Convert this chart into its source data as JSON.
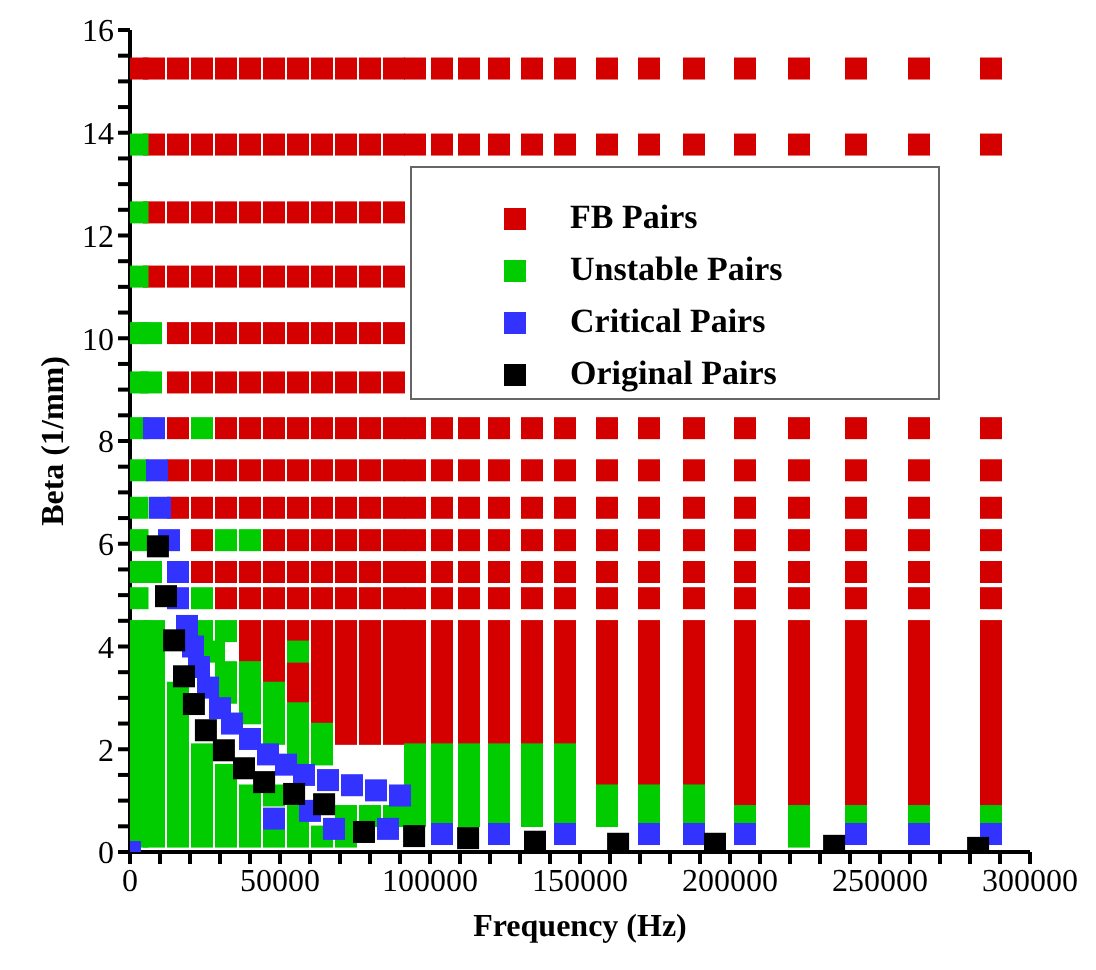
{
  "chart_data": {
    "type": "scatter",
    "xlabel": "Frequency (Hz)",
    "ylabel": "Beta (1/mm)",
    "xlim": [
      0,
      300000
    ],
    "ylim": [
      0,
      16
    ],
    "xticks": [
      0,
      {
        "value": 10000,
        "label": null
      },
      {
        "value": 20000,
        "label": null
      },
      {
        "value": 30000,
        "label": null
      },
      {
        "value": 40000,
        "label": null
      },
      50000,
      {
        "value": 60000,
        "label": null
      },
      {
        "value": 70000,
        "label": null
      },
      {
        "value": 80000,
        "label": null
      },
      {
        "value": 90000,
        "label": null
      },
      100000,
      {
        "value": 110000,
        "label": null
      },
      {
        "value": 120000,
        "label": null
      },
      {
        "value": 130000,
        "label": null
      },
      {
        "value": 140000,
        "label": null
      },
      150000,
      {
        "value": 160000,
        "label": null
      },
      {
        "value": 170000,
        "label": null
      },
      {
        "value": 180000,
        "label": null
      },
      {
        "value": 190000,
        "label": null
      },
      200000,
      {
        "value": 210000,
        "label": null
      },
      {
        "value": 220000,
        "label": null
      },
      {
        "value": 230000,
        "label": null
      },
      {
        "value": 240000,
        "label": null
      },
      250000,
      {
        "value": 260000,
        "label": null
      },
      {
        "value": 270000,
        "label": null
      },
      {
        "value": 280000,
        "label": null
      },
      {
        "value": 290000,
        "label": null
      },
      300000
    ],
    "yticks": [
      0,
      {
        "value": 0.5,
        "label": null
      },
      {
        "value": 1,
        "label": null
      },
      {
        "value": 1.5,
        "label": null
      },
      2,
      {
        "value": 2.5,
        "label": null
      },
      {
        "value": 3,
        "label": null
      },
      {
        "value": 3.5,
        "label": null
      },
      4,
      {
        "value": 4.5,
        "label": null
      },
      {
        "value": 5,
        "label": null
      },
      {
        "value": 5.5,
        "label": null
      },
      6,
      {
        "value": 6.5,
        "label": null
      },
      {
        "value": 7,
        "label": null
      },
      {
        "value": 7.5,
        "label": null
      },
      8,
      {
        "value": 8.5,
        "label": null
      },
      {
        "value": 9,
        "label": null
      },
      {
        "value": 9.5,
        "label": null
      },
      10,
      {
        "value": 10.5,
        "label": null
      },
      {
        "value": 11,
        "label": null
      },
      {
        "value": 11.5,
        "label": null
      },
      12,
      {
        "value": 12.5,
        "label": null
      },
      {
        "value": 13,
        "label": null
      },
      {
        "value": 13.5,
        "label": null
      },
      14,
      {
        "value": 14.5,
        "label": null
      },
      {
        "value": 15,
        "label": null
      },
      {
        "value": 15.5,
        "label": null
      },
      16
    ],
    "legend": "top right",
    "marker": "square",
    "series": [
      {
        "name": "FB Pairs",
        "color": "#d40000",
        "x": [
          2500,
          8000,
          16000,
          24000,
          32000,
          40000,
          48000,
          56000,
          64000,
          72000,
          80000,
          88000,
          95000,
          104000,
          113000,
          123000,
          134000,
          145000,
          159000,
          173000,
          188000,
          205000,
          223000,
          242000,
          263000,
          287000
        ],
        "values": [
          15.25,
          15.25,
          15.25,
          15.25,
          15.25,
          15.25,
          15.25,
          15.25,
          15.25,
          15.25,
          15.25,
          15.25,
          15.25,
          15.25,
          15.25,
          15.25,
          15.25,
          15.25,
          15.25,
          15.25,
          15.25,
          15.25,
          15.25,
          15.25,
          15.25,
          15.25
        ]
      },
      {
        "color": "#d40000",
        "x": [
          8000,
          16000,
          24000,
          32000,
          40000,
          48000,
          56000,
          64000,
          72000,
          80000,
          88000,
          95000,
          104000,
          113000,
          123000,
          134000,
          145000,
          159000,
          173000,
          188000,
          205000,
          223000,
          242000,
          263000,
          287000
        ],
        "values": [
          13.77,
          13.77,
          13.77,
          13.77,
          13.77,
          13.77,
          13.77,
          13.77,
          13.77,
          13.77,
          13.77,
          13.77,
          13.77,
          13.77,
          13.77,
          13.77,
          13.77,
          13.77,
          13.77,
          13.77,
          13.77,
          13.77,
          13.77,
          13.77,
          13.77
        ]
      },
      {
        "color": "#d40000",
        "x": [
          8000,
          16000,
          24000,
          32000,
          40000,
          48000,
          56000,
          64000,
          72000,
          80000,
          88000
        ],
        "values": [
          12.45,
          12.45,
          12.45,
          12.45,
          12.45,
          12.45,
          12.45,
          12.45,
          12.45,
          12.45,
          12.45
        ]
      },
      {
        "color": "#d40000",
        "x": [
          8000,
          16000,
          24000,
          32000,
          40000,
          48000,
          56000,
          64000,
          72000,
          80000,
          88000
        ],
        "values": [
          11.2,
          11.2,
          11.2,
          11.2,
          11.2,
          11.2,
          11.2,
          11.2,
          11.2,
          11.2,
          11.2
        ]
      },
      {
        "color": "#d40000",
        "x": [
          16000,
          24000,
          32000,
          40000,
          48000,
          56000,
          64000,
          72000,
          80000,
          88000
        ],
        "values": [
          10.1,
          10.1,
          10.1,
          10.1,
          10.1,
          10.1,
          10.1,
          10.1,
          10.1,
          10.1
        ]
      },
      {
        "color": "#d40000",
        "x": [
          16000,
          24000,
          32000,
          40000,
          48000,
          56000,
          64000,
          72000,
          80000,
          88000
        ],
        "values": [
          9.14,
          9.14,
          9.14,
          9.14,
          9.14,
          9.14,
          9.14,
          9.14,
          9.14,
          9.14
        ]
      },
      {
        "color": "#d40000",
        "x": [
          16000,
          32000,
          40000,
          48000,
          56000,
          64000,
          72000,
          80000,
          88000,
          95000,
          104000,
          113000,
          123000,
          134000,
          145000,
          159000,
          173000,
          188000,
          205000,
          223000,
          242000,
          263000,
          287000
        ],
        "values": [
          8.25,
          8.25,
          8.25,
          8.25,
          8.25,
          8.25,
          8.25,
          8.25,
          8.25,
          8.25,
          8.25,
          8.25,
          8.25,
          8.25,
          8.25,
          8.25,
          8.25,
          8.25,
          8.25,
          8.25,
          8.25,
          8.25,
          8.25
        ]
      },
      {
        "color": "#d40000",
        "x": [
          16000,
          24000,
          32000,
          40000,
          48000,
          56000,
          64000,
          72000,
          80000,
          88000,
          95000,
          104000,
          113000,
          123000,
          134000,
          145000,
          159000,
          173000,
          188000,
          205000,
          223000,
          242000,
          263000,
          287000
        ],
        "values": [
          7.43,
          7.43,
          7.43,
          7.43,
          7.43,
          7.43,
          7.43,
          7.43,
          7.43,
          7.43,
          7.43,
          7.43,
          7.43,
          7.43,
          7.43,
          7.43,
          7.43,
          7.43,
          7.43,
          7.43,
          7.43,
          7.43,
          7.43,
          7.43
        ]
      },
      {
        "color": "#d40000",
        "x": [
          16000,
          24000,
          32000,
          40000,
          48000,
          56000,
          64000,
          72000,
          80000,
          88000,
          95000,
          104000,
          113000,
          123000,
          134000,
          145000,
          159000,
          173000,
          188000,
          205000,
          223000,
          242000,
          263000,
          287000
        ],
        "values": [
          6.7,
          6.7,
          6.7,
          6.7,
          6.7,
          6.7,
          6.7,
          6.7,
          6.7,
          6.7,
          6.7,
          6.7,
          6.7,
          6.7,
          6.7,
          6.7,
          6.7,
          6.7,
          6.7,
          6.7,
          6.7,
          6.7,
          6.7,
          6.7
        ]
      },
      {
        "color": "#d40000",
        "x": [
          24000,
          48000,
          56000,
          64000,
          72000,
          80000,
          88000,
          95000,
          104000,
          113000,
          123000,
          134000,
          145000,
          159000,
          173000,
          188000,
          205000,
          223000,
          242000,
          263000,
          287000
        ],
        "values": [
          6.07,
          6.07,
          6.07,
          6.07,
          6.07,
          6.07,
          6.07,
          6.07,
          6.07,
          6.07,
          6.07,
          6.07,
          6.07,
          6.07,
          6.07,
          6.07,
          6.07,
          6.07,
          6.07,
          6.07,
          6.07
        ]
      },
      {
        "color": "#d40000",
        "x": [
          24000,
          32000,
          40000,
          48000,
          56000,
          64000,
          72000,
          80000,
          88000,
          95000,
          104000,
          113000,
          123000,
          134000,
          145000,
          159000,
          173000,
          188000,
          205000,
          223000,
          242000,
          263000,
          287000
        ],
        "values": [
          5.45,
          5.45,
          5.45,
          5.45,
          5.45,
          5.45,
          5.45,
          5.45,
          5.45,
          5.45,
          5.45,
          5.45,
          5.45,
          5.45,
          5.45,
          5.45,
          5.45,
          5.45,
          5.45,
          5.45,
          5.45,
          5.45,
          5.45
        ]
      },
      {
        "color": "#d40000",
        "x": [
          32000,
          40000,
          48000,
          56000,
          64000,
          72000,
          80000,
          88000,
          95000,
          104000,
          113000,
          123000,
          134000,
          145000,
          159000,
          173000,
          188000,
          205000,
          223000,
          242000,
          263000,
          287000
        ],
        "values": [
          4.94,
          4.94,
          4.94,
          4.94,
          4.94,
          4.94,
          4.94,
          4.94,
          4.94,
          4.94,
          4.94,
          4.94,
          4.94,
          4.94,
          4.94,
          4.94,
          4.94,
          4.94,
          4.94,
          4.94,
          4.94,
          4.94
        ]
      },
      {
        "color": "#d40000",
        "x": [
          40000,
          48000,
          56000,
          64000,
          72000,
          80000,
          88000,
          95000,
          104000,
          113000,
          123000,
          134000,
          145000,
          159000,
          173000,
          188000,
          205000,
          223000,
          242000,
          263000,
          287000
        ],
        "values": [
          4.3,
          4.3,
          4.3,
          4.3,
          4.3,
          4.3,
          4.3,
          4.3,
          4.3,
          4.3,
          4.3,
          4.3,
          4.3,
          4.3,
          4.3,
          4.3,
          4.3,
          4.3,
          4.3,
          4.3,
          4.3
        ]
      },
      {
        "color": "#d40000",
        "x": [
          40000,
          48000,
          64000,
          72000,
          80000,
          88000,
          95000,
          104000,
          113000,
          123000,
          134000,
          145000,
          159000,
          173000,
          188000,
          205000,
          223000,
          242000,
          263000,
          287000
        ],
        "values": [
          3.9,
          3.9,
          3.9,
          3.9,
          3.9,
          3.9,
          3.9,
          3.9,
          3.9,
          3.9,
          3.9,
          3.9,
          3.9,
          3.9,
          3.9,
          3.9,
          3.9,
          3.9,
          3.9,
          3.9
        ]
      },
      {
        "color": "#d40000",
        "x": [
          48000,
          56000,
          64000,
          72000,
          80000,
          88000,
          95000,
          104000,
          113000,
          123000,
          134000,
          145000,
          159000,
          173000,
          188000,
          205000,
          223000,
          242000,
          263000,
          287000
        ],
        "values": [
          3.5,
          3.5,
          3.5,
          3.5,
          3.5,
          3.5,
          3.5,
          3.5,
          3.5,
          3.5,
          3.5,
          3.5,
          3.5,
          3.5,
          3.5,
          3.5,
          3.5,
          3.5,
          3.5,
          3.5
        ]
      },
      {
        "color": "#d40000",
        "x": [
          56000,
          64000,
          72000,
          80000,
          88000,
          95000,
          104000,
          113000,
          123000,
          134000,
          145000,
          159000,
          173000,
          188000,
          205000,
          223000,
          242000,
          263000,
          287000
        ],
        "values": [
          3.1,
          3.1,
          3.1,
          3.1,
          3.1,
          3.1,
          3.1,
          3.1,
          3.1,
          3.1,
          3.1,
          3.1,
          3.1,
          3.1,
          3.1,
          3.1,
          3.1,
          3.1,
          3.1
        ]
      },
      {
        "color": "#d40000",
        "x": [
          64000,
          72000,
          80000,
          88000,
          95000,
          104000,
          113000,
          123000,
          134000,
          145000,
          159000,
          173000,
          188000,
          205000,
          223000,
          242000,
          263000,
          287000
        ],
        "values": [
          2.7,
          2.7,
          2.7,
          2.7,
          2.7,
          2.7,
          2.7,
          2.7,
          2.7,
          2.7,
          2.7,
          2.7,
          2.7,
          2.7,
          2.7,
          2.7,
          2.7,
          2.7
        ]
      },
      {
        "color": "#d40000",
        "x": [
          72000,
          80000,
          88000,
          95000,
          104000,
          113000,
          123000,
          134000,
          145000,
          159000,
          173000,
          188000,
          205000,
          223000,
          242000,
          263000,
          287000
        ],
        "values": [
          2.3,
          2.3,
          2.3,
          2.3,
          2.3,
          2.3,
          2.3,
          2.3,
          2.3,
          2.3,
          2.3,
          2.3,
          2.3,
          2.3,
          2.3,
          2.3,
          2.3
        ]
      },
      {
        "color": "#d40000",
        "x": [
          159000,
          173000,
          188000,
          205000,
          223000,
          242000,
          263000,
          287000
        ],
        "values": [
          1.9,
          1.9,
          1.9,
          1.9,
          1.9,
          1.9,
          1.9,
          1.9
        ]
      },
      {
        "color": "#d40000",
        "x": [
          159000,
          173000,
          188000,
          205000,
          223000,
          242000,
          263000,
          287000
        ],
        "values": [
          1.5,
          1.5,
          1.5,
          1.5,
          1.5,
          1.5,
          1.5,
          1.5
        ]
      },
      {
        "color": "#d40000",
        "x": [
          205000,
          223000,
          242000,
          263000,
          287000
        ],
        "values": [
          1.1,
          1.1,
          1.1,
          1.1,
          1.1
        ]
      },
      {
        "name": "Unstable Pairs",
        "color": "#00cc00",
        "x": [
          2500,
          2500,
          2500,
          2500,
          7000,
          2500,
          7000,
          2500,
          24000,
          2500,
          2500,
          2500,
          32000,
          40000,
          2500,
          7000,
          2500,
          24000
        ],
        "values": [
          13.77,
          12.45,
          11.2,
          10.1,
          10.1,
          9.14,
          9.14,
          8.25,
          8.25,
          7.43,
          6.7,
          6.07,
          6.07,
          6.07,
          5.45,
          5.45,
          4.94,
          4.94
        ]
      },
      {
        "color": "#00cc00",
        "x": [
          2500,
          8000,
          24000,
          32000
        ],
        "values": [
          4.3,
          4.3,
          4.3,
          4.3
        ]
      },
      {
        "color": "#00cc00",
        "x": [
          2500,
          8000,
          28000,
          56000
        ],
        "values": [
          3.9,
          3.9,
          3.9,
          3.9
        ]
      },
      {
        "color": "#00cc00",
        "x": [
          2500,
          8000,
          32000,
          40000
        ],
        "values": [
          3.5,
          3.5,
          3.5,
          3.5
        ]
      },
      {
        "color": "#00cc00",
        "x": [
          2500,
          8000,
          16000,
          32000,
          40000,
          48000
        ],
        "values": [
          3.1,
          3.1,
          3.1,
          3.1,
          3.1,
          3.1
        ]
      },
      {
        "color": "#00cc00",
        "x": [
          2500,
          8000,
          16000,
          40000,
          48000,
          56000
        ],
        "values": [
          2.7,
          2.7,
          2.7,
          2.7,
          2.7,
          2.7
        ]
      },
      {
        "color": "#00cc00",
        "x": [
          2500,
          8000,
          16000,
          48000,
          56000,
          64000
        ],
        "values": [
          2.3,
          2.3,
          2.3,
          2.3,
          2.3,
          2.3
        ]
      },
      {
        "color": "#00cc00",
        "x": [
          2500,
          8000,
          16000,
          24000,
          56000,
          64000,
          95000,
          104000,
          113000,
          123000,
          134000,
          145000
        ],
        "values": [
          1.9,
          1.9,
          1.9,
          1.9,
          1.9,
          1.9,
          1.9,
          1.9,
          1.9,
          1.9,
          1.9,
          1.9
        ]
      },
      {
        "color": "#00cc00",
        "x": [
          2500,
          8000,
          16000,
          24000,
          32000,
          95000,
          104000,
          113000,
          123000,
          134000,
          145000
        ],
        "values": [
          1.5,
          1.5,
          1.5,
          1.5,
          1.5,
          1.5,
          1.5,
          1.5,
          1.5,
          1.5,
          1.5
        ]
      },
      {
        "color": "#00cc00",
        "x": [
          2500,
          8000,
          16000,
          24000,
          32000,
          40000,
          48000,
          95000,
          104000,
          113000,
          123000,
          134000,
          145000,
          159000,
          173000,
          188000
        ],
        "values": [
          1.1,
          1.1,
          1.1,
          1.1,
          1.1,
          1.1,
          1.1,
          1.1,
          1.1,
          1.1,
          1.1,
          1.1,
          1.1,
          1.1,
          1.1,
          1.1
        ]
      },
      {
        "color": "#00cc00",
        "x": [
          2500,
          8000,
          16000,
          24000,
          32000,
          40000,
          56000,
          72000,
          80000,
          88000,
          95000,
          104000,
          113000,
          123000,
          134000,
          145000,
          159000,
          173000,
          188000,
          205000,
          223000,
          242000,
          263000,
          287000
        ],
        "values": [
          0.7,
          0.7,
          0.7,
          0.7,
          0.7,
          0.7,
          0.7,
          0.7,
          0.7,
          0.7,
          0.7,
          0.7,
          0.7,
          0.7,
          0.7,
          0.7,
          0.7,
          0.7,
          0.7,
          0.7,
          0.7,
          0.7,
          0.7,
          0.7
        ]
      },
      {
        "color": "#00cc00",
        "x": [
          2500,
          8000,
          16000,
          24000,
          32000,
          40000,
          48000,
          56000,
          64000,
          72000,
          223000
        ],
        "values": [
          0.3,
          0.3,
          0.3,
          0.3,
          0.3,
          0.3,
          0.3,
          0.3,
          0.3,
          0.3,
          0.3
        ]
      },
      {
        "name": "Critical Pairs",
        "color": "#3333ff",
        "x": [
          0,
          8000,
          9000,
          10000,
          13000,
          16000,
          16000,
          19000,
          21000,
          23000,
          26000,
          30000,
          34000,
          40000,
          46000,
          52000,
          58000,
          66000,
          74000,
          82000,
          90000,
          48000,
          60000,
          68000,
          86000,
          104000,
          123000,
          145000,
          173000,
          188000,
          205000,
          242000,
          263000,
          287000
        ],
        "values": [
          0,
          8.25,
          7.43,
          6.7,
          6.07,
          5.45,
          4.94,
          4.4,
          4.0,
          3.6,
          3.2,
          2.8,
          2.5,
          2.2,
          1.9,
          1.7,
          1.5,
          1.4,
          1.3,
          1.2,
          1.1,
          0.65,
          0.8,
          0.45,
          0.45,
          0.35,
          0.35,
          0.35,
          0.35,
          0.35,
          0.35,
          0.35,
          0.35,
          0.35
        ]
      },
      {
        "name": "Original Pairs",
        "color": "#000000",
        "x": [
          9300,
          12000,
          14700,
          18000,
          21300,
          25300,
          31300,
          38000,
          44700,
          54700,
          64700,
          78000,
          94700,
          112700,
          135000,
          162700,
          195000,
          234700,
          282700
        ],
        "values": [
          5.95,
          4.98,
          4.12,
          3.42,
          2.88,
          2.37,
          1.98,
          1.63,
          1.36,
          1.13,
          0.93,
          0.39,
          0.31,
          0.27,
          0.2,
          0.16,
          0.16,
          0.12,
          0.08
        ]
      }
    ]
  }
}
